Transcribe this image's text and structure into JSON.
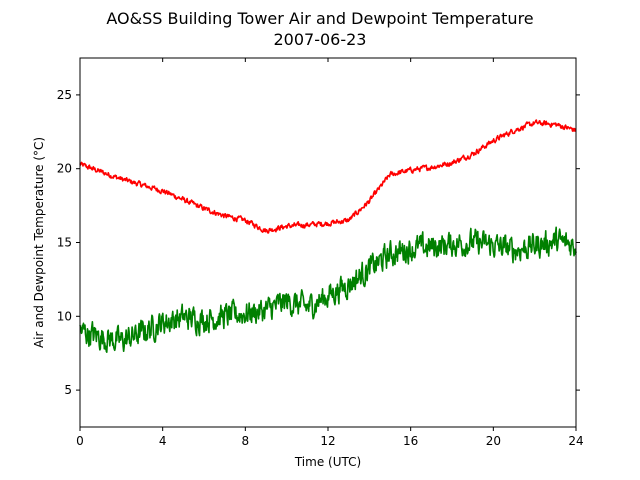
{
  "chart_data": {
    "type": "line",
    "title": "AO&SS Building Tower Air and Dewpoint Temperature",
    "subtitle": "2007-06-23",
    "xlabel": "Time (UTC)",
    "ylabel": "Air and Dewpoint Temperature (°C)",
    "xlim": [
      0,
      24
    ],
    "ylim": [
      2.5,
      27.5
    ],
    "x_ticks": [
      0,
      4,
      8,
      12,
      16,
      20,
      24
    ],
    "y_ticks": [
      5,
      10,
      15,
      20,
      25
    ],
    "grid": false,
    "x": [
      0,
      1,
      2,
      3,
      4,
      5,
      6,
      7,
      8,
      9,
      10,
      11,
      12,
      13,
      14,
      15,
      16,
      17,
      18,
      19,
      20,
      21,
      22,
      23,
      24
    ],
    "series": [
      {
        "color": "#ff0000",
        "values": [
          20.3,
          19.8,
          19.3,
          18.9,
          18.5,
          17.9,
          17.3,
          16.8,
          16.5,
          15.8,
          16.1,
          16.2,
          16.3,
          16.5,
          17.8,
          19.6,
          19.9,
          20.1,
          20.4,
          21.0,
          21.9,
          22.6,
          23.1,
          23.0,
          22.6
        ],
        "noise": 0.15
      },
      {
        "color": "#008000",
        "values": [
          9.0,
          8.6,
          8.3,
          8.9,
          9.6,
          9.9,
          9.8,
          10.0,
          10.2,
          10.4,
          11.0,
          10.6,
          11.4,
          12.2,
          13.2,
          14.2,
          14.6,
          14.7,
          14.9,
          15.0,
          14.8,
          14.5,
          14.8,
          15.1,
          14.8
        ],
        "noise": 0.7
      }
    ]
  }
}
